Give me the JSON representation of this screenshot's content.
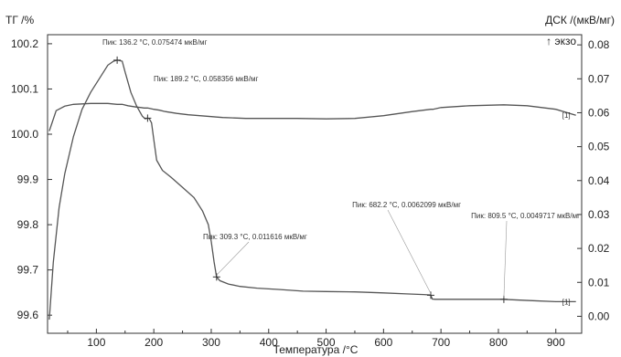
{
  "chart_data": {
    "type": "line",
    "left_axis_label": "ТГ /%",
    "right_axis_label": "ДСК /(мкВ/мг)",
    "exo_label": "↑ экзо",
    "xlabel": "Температура /°C",
    "xlim": [
      15,
      945
    ],
    "x_ticks": [
      "100",
      "200",
      "300",
      "400",
      "500",
      "600",
      "700",
      "800",
      "900"
    ],
    "left_ylim": [
      99.56,
      100.22
    ],
    "left_ticks": [
      "99.6",
      "99.7",
      "99.8",
      "99.9",
      "100.0",
      "100.1",
      "100.2"
    ],
    "right_ylim": [
      -0.005,
      0.083
    ],
    "right_ticks": [
      "0.00",
      "0.01",
      "0.02",
      "0.03",
      "0.04",
      "0.05",
      "0.06",
      "0.07",
      "0.08"
    ],
    "series": [
      {
        "axis": "left",
        "end_label": "[1]",
        "color": "#555555",
        "x": [
          18,
          30,
          45,
          60,
          75,
          90,
          105,
          120,
          136.2,
          145,
          155,
          170,
          178,
          183,
          189.2,
          193,
          200,
          210,
          220,
          240,
          260,
          280,
          290,
          300,
          309.3,
          320,
          340,
          360,
          380,
          400,
          450,
          500,
          550,
          600,
          650,
          682.2,
          686,
          700,
          750,
          809.5,
          850,
          900,
          935
        ],
        "y": [
          100.007,
          100.052,
          100.062,
          100.066,
          100.067,
          100.068,
          100.068,
          100.068,
          100.066,
          100.066,
          100.063,
          100.06,
          100.059,
          100.058,
          100.058,
          100.057,
          100.055,
          100.053,
          100.05,
          100.046,
          100.043,
          100.041,
          100.04,
          100.039,
          100.038,
          100.037,
          100.036,
          100.035,
          100.035,
          100.035,
          100.035,
          100.034,
          100.035,
          100.041,
          100.05,
          100.055,
          100.055,
          100.059,
          100.063,
          100.065,
          100.063,
          100.055,
          100.042
        ]
      },
      {
        "axis": "right",
        "end_label": "[1]",
        "color": "#555555",
        "x": [
          18,
          25,
          35,
          45,
          60,
          75,
          90,
          105,
          120,
          130,
          136.2,
          145,
          150,
          160,
          170,
          180,
          185,
          189.2,
          192,
          196,
          200,
          205,
          215,
          230,
          250,
          270,
          285,
          295,
          300,
          305,
          309.3,
          315,
          330,
          350,
          380,
          420,
          460,
          500,
          550,
          600,
          640,
          670,
          680,
          682.2,
          685,
          690,
          720,
          760,
          800,
          809.5,
          820,
          860,
          900,
          935
        ],
        "y": [
          -0.001,
          0.016,
          0.032,
          0.042,
          0.053,
          0.061,
          0.066,
          0.07,
          0.074,
          0.0752,
          0.0755,
          0.0752,
          0.072,
          0.066,
          0.062,
          0.059,
          0.0582,
          0.0584,
          0.0583,
          0.057,
          0.052,
          0.046,
          0.043,
          0.041,
          0.038,
          0.035,
          0.031,
          0.027,
          0.022,
          0.016,
          0.0116,
          0.0105,
          0.0095,
          0.0088,
          0.0083,
          0.0079,
          0.0074,
          0.0073,
          0.0072,
          0.0069,
          0.0066,
          0.0064,
          0.0063,
          0.0062,
          0.0051,
          0.005,
          0.005,
          0.005,
          0.005,
          0.005,
          0.0049,
          0.0046,
          0.0043,
          0.0043
        ]
      }
    ],
    "peaks": [
      {
        "x": 136.2,
        "y": 0.0755,
        "label": "Пик: 136.2 °C, 0.075474 мкВ/мг"
      },
      {
        "x": 189.2,
        "y": 0.0584,
        "label": "Пик: 189.2 °C, 0.058356 мкВ/мг"
      },
      {
        "x": 309.3,
        "y": 0.0116,
        "label": "Пик: 309.3 °C, 0.011616 мкВ/мг"
      },
      {
        "x": 682.2,
        "y": 0.0062,
        "label": "Пик: 682.2 °C, 0.0062099 мкВ/мг"
      },
      {
        "x": 809.5,
        "y": 0.005,
        "label": "Пик: 809.5 °C, 0.0049717 мкВ/мг"
      }
    ],
    "grid": false
  }
}
